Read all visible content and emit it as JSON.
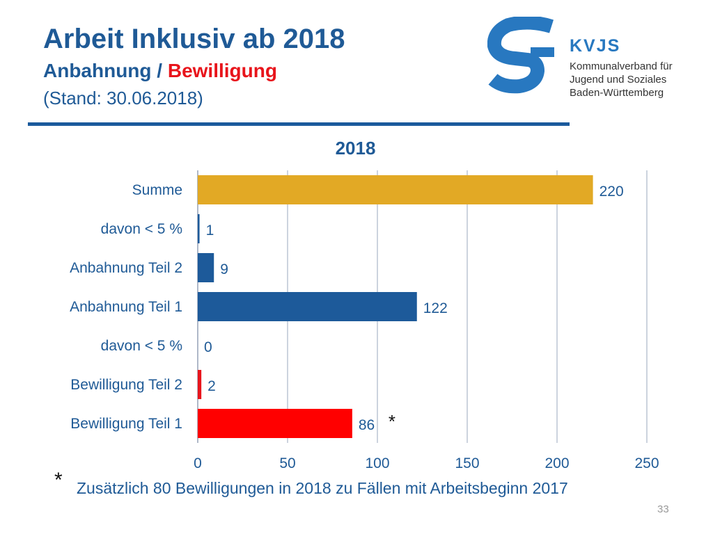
{
  "slide": {
    "title": "Arbeit Inklusiv ab 2018",
    "subtitle_part1": "Anbahnung / ",
    "subtitle_part2": "Bewilligung",
    "stand": "(Stand: 30.06.2018)",
    "footnote_marker": "*",
    "footnote": "Zusätzlich 80 Bewilligungen in 2018 zu Fällen mit Arbeitsbeginn 2017",
    "page_number": "33"
  },
  "logo": {
    "name": "KVJS",
    "line1": "Kommunalverband für",
    "line2": "Jugend und Soziales",
    "line3": "Baden-Württemberg"
  },
  "chart_data": {
    "type": "bar",
    "orientation": "horizontal",
    "title": "2018",
    "categories": [
      "Summe",
      "davon < 5 %",
      "Anbahnung Teil 2",
      "Anbahnung Teil 1",
      "davon < 5 %",
      "Bewilligung Teil 2",
      "Bewilligung Teil 1"
    ],
    "values": [
      220,
      1,
      9,
      122,
      0,
      2,
      86
    ],
    "colors": [
      "#e2a925",
      "#1d5a9a",
      "#1d5a9a",
      "#1d5a9a",
      "#e8141b",
      "#e8141b",
      "#ff0000"
    ],
    "annotation": "*",
    "xlim": [
      0,
      250
    ],
    "xticks": [
      0,
      50,
      100,
      150,
      200,
      250
    ],
    "grid": true
  }
}
